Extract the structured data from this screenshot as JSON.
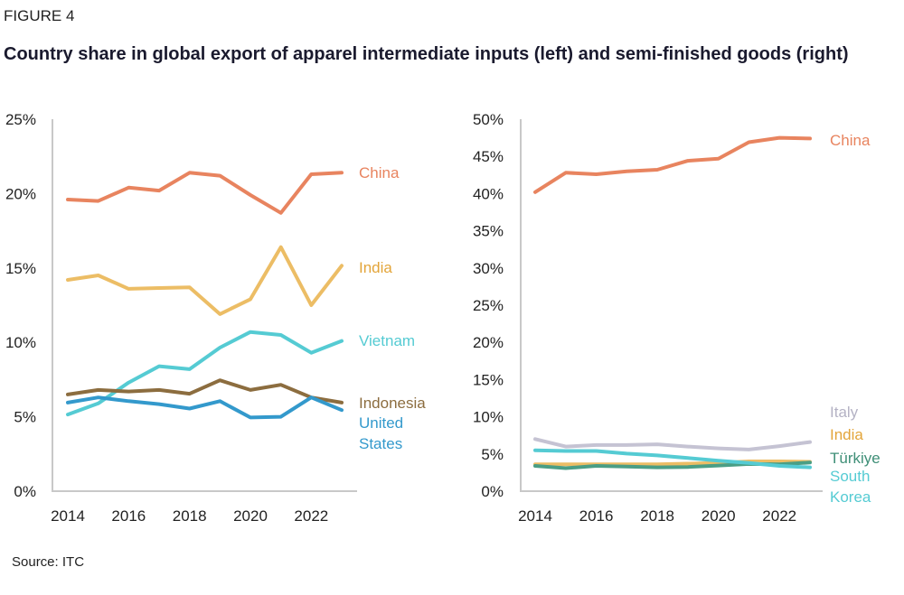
{
  "figure_label": "FIGURE 4",
  "title": "Country share in global export of apparel intermediate inputs (left) and semi-finished goods (right)",
  "source": "Source: ITC",
  "chart_data": [
    {
      "type": "line",
      "title": "Apparel intermediate inputs",
      "xlabel": "",
      "ylabel": "",
      "x": [
        2014,
        2015,
        2016,
        2017,
        2018,
        2019,
        2020,
        2021,
        2022,
        2023
      ],
      "x_tick_labels": [
        "2014",
        "2016",
        "2018",
        "2020",
        "2022"
      ],
      "x_ticks": [
        2014,
        2016,
        2018,
        2020,
        2022
      ],
      "ylim": [
        0,
        25
      ],
      "y_ticks": [
        0,
        5,
        10,
        15,
        20,
        25
      ],
      "y_tick_labels": [
        "0%",
        "5%",
        "10%",
        "15%",
        "20%",
        "25%"
      ],
      "grid": false,
      "legend": "inline-right",
      "series": [
        {
          "name": "China",
          "color": "#e8845f",
          "values": [
            19.6,
            19.5,
            20.4,
            20.2,
            21.4,
            21.2,
            19.9,
            18.7,
            21.3,
            21.4
          ]
        },
        {
          "name": "India",
          "color": "#ecbd65",
          "label_color": "#e3a53a",
          "values": [
            14.2,
            14.5,
            13.6,
            13.65,
            13.7,
            11.9,
            12.9,
            16.4,
            12.5,
            15.15
          ]
        },
        {
          "name": "Vietnam",
          "color": "#55cbd3",
          "values": [
            5.15,
            5.9,
            7.3,
            8.4,
            8.2,
            9.65,
            10.7,
            10.5,
            9.3,
            10.1
          ]
        },
        {
          "name": "Indonesia",
          "color": "#8c6d3f",
          "values": [
            6.5,
            6.8,
            6.7,
            6.8,
            6.55,
            7.45,
            6.8,
            7.15,
            6.3,
            5.95
          ]
        },
        {
          "name": "United States",
          "label_lines": [
            "United",
            "States"
          ],
          "color": "#3399cc",
          "values": [
            5.95,
            6.3,
            6.05,
            5.85,
            5.55,
            6.05,
            4.95,
            5.0,
            6.3,
            5.45
          ]
        }
      ]
    },
    {
      "type": "line",
      "title": "Apparel semi-finished goods",
      "xlabel": "",
      "ylabel": "",
      "x": [
        2014,
        2015,
        2016,
        2017,
        2018,
        2019,
        2020,
        2021,
        2022,
        2023
      ],
      "x_tick_labels": [
        "2014",
        "2016",
        "2018",
        "2020",
        "2022"
      ],
      "x_ticks": [
        2014,
        2016,
        2018,
        2020,
        2022
      ],
      "ylim": [
        0,
        50
      ],
      "y_ticks": [
        0,
        5,
        10,
        15,
        20,
        25,
        30,
        35,
        40,
        45,
        50
      ],
      "y_tick_labels": [
        "0%",
        "5%",
        "10%",
        "15%",
        "20%",
        "25%",
        "30%",
        "35%",
        "40%",
        "45%",
        "50%"
      ],
      "grid": false,
      "legend": "inline-right",
      "series": [
        {
          "name": "China",
          "color": "#e8845f",
          "values": [
            40.2,
            42.8,
            42.6,
            43.0,
            43.2,
            44.4,
            44.7,
            46.9,
            47.5,
            47.4
          ]
        },
        {
          "name": "Italy",
          "color": "#c5c3d3",
          "label_color": "#b4b2c4",
          "values": [
            7.0,
            6.0,
            6.2,
            6.2,
            6.3,
            6.0,
            5.75,
            5.6,
            6.05,
            6.6
          ]
        },
        {
          "name": "India",
          "color": "#ecbd65",
          "label_color": "#e3a53a",
          "values": [
            3.6,
            3.6,
            3.6,
            3.6,
            3.6,
            3.7,
            3.8,
            4.0,
            4.0,
            3.95
          ]
        },
        {
          "name": "Türkiye",
          "color": "#4a9e85",
          "label_color": "#3f8f77",
          "values": [
            3.4,
            3.1,
            3.4,
            3.3,
            3.2,
            3.25,
            3.45,
            3.65,
            3.6,
            3.85
          ]
        },
        {
          "name": "South Korea",
          "label_lines": [
            "South",
            "Korea"
          ],
          "color": "#55cbd3",
          "values": [
            5.5,
            5.4,
            5.4,
            5.05,
            4.8,
            4.45,
            4.1,
            3.8,
            3.4,
            3.2
          ]
        }
      ]
    }
  ]
}
